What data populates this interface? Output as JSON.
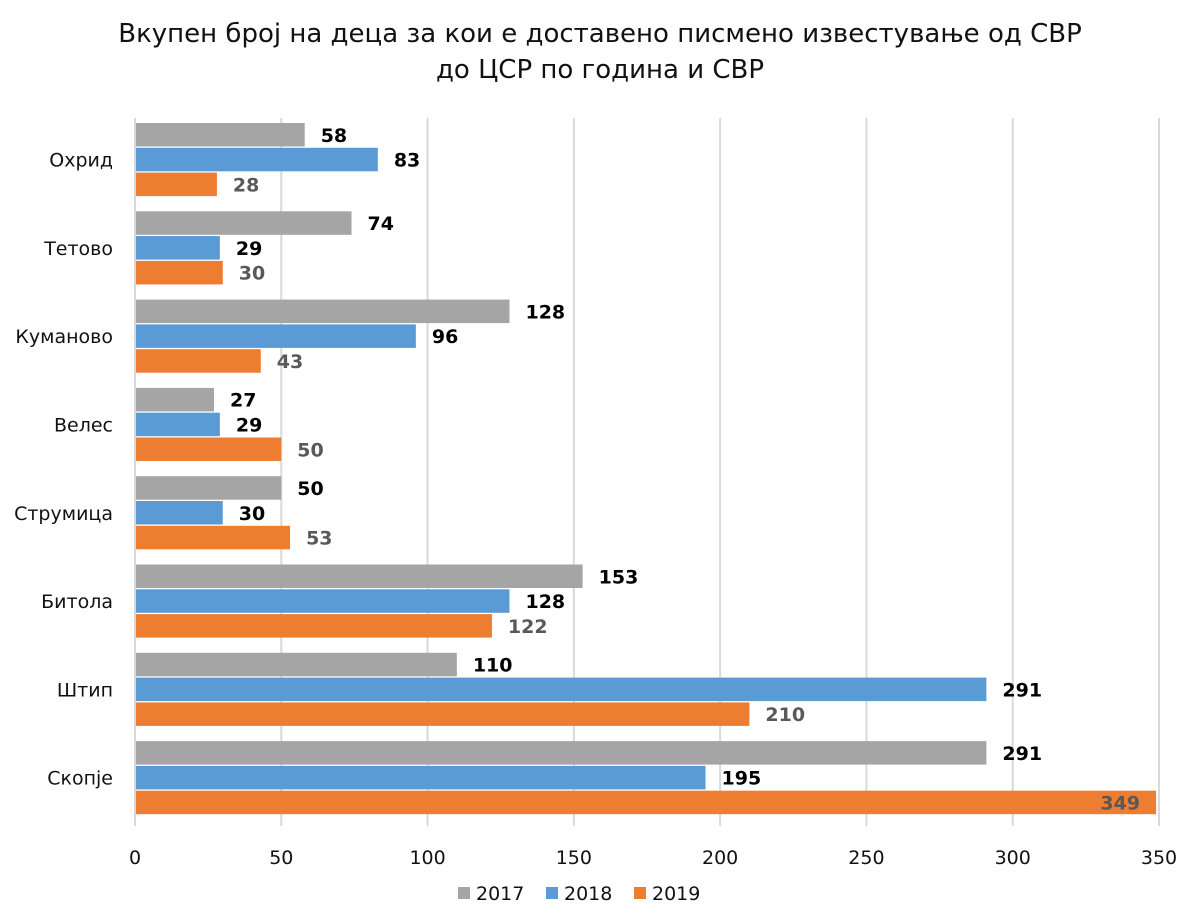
{
  "chart_data": {
    "type": "bar",
    "orientation": "horizontal",
    "title_lines": [
      "Вкупен број на деца за кои е доставено писмено известување од СВР",
      "до ЦСР по година и СВР"
    ],
    "categories": [
      "Охрид",
      "Тетово",
      "Куманово",
      "Велес",
      "Струмица",
      "Битола",
      "Штип",
      "Скопје"
    ],
    "series": [
      {
        "name": "2017",
        "color": "#a5a5a5",
        "label_color": "#000000",
        "values": [
          58,
          74,
          128,
          27,
          50,
          153,
          110,
          291
        ]
      },
      {
        "name": "2018",
        "color": "#5b9bd5",
        "label_color": "#000000",
        "values": [
          83,
          29,
          96,
          29,
          30,
          128,
          291,
          195
        ]
      },
      {
        "name": "2019",
        "color": "#ed7d31",
        "label_color": "#595959",
        "values": [
          28,
          30,
          43,
          50,
          53,
          122,
          210,
          349
        ]
      }
    ],
    "x_ticks": [
      0,
      50,
      100,
      150,
      200,
      250,
      300,
      350
    ],
    "xlim": [
      0,
      350
    ],
    "grid": "vertical",
    "legend_position": "bottom",
    "xlabel": "",
    "ylabel": ""
  }
}
